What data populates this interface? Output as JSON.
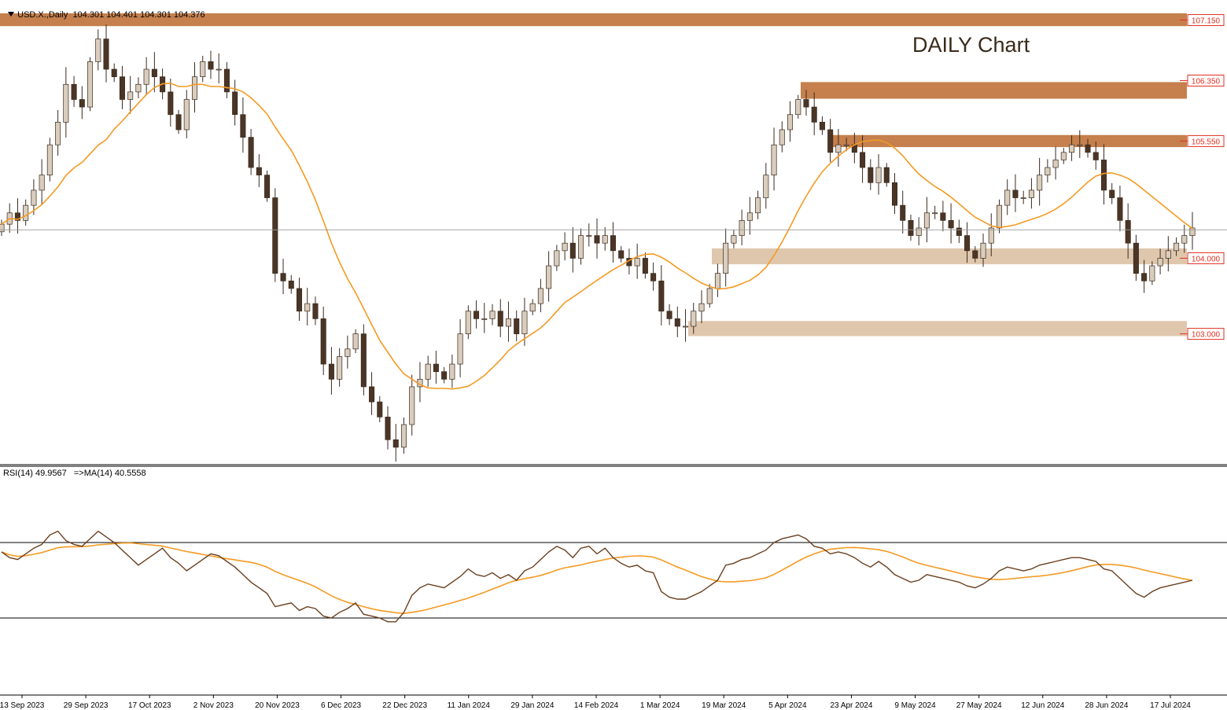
{
  "header": {
    "symbol": "USD.X.,Daily",
    "ohlc": "104.301 104.401 104.301 104.376"
  },
  "title": "DAILY Chart",
  "rsi_header": "RSI(14) 49.9567   =>MA(14) 40.5558",
  "colors": {
    "zone_dark": "#c5804d",
    "zone_light": "#dfc7ad",
    "ma": "#f59a23",
    "rsi": "#6b3f1e",
    "bull_body": "#d9cdbd",
    "bear_body": "#4a3526",
    "price_label": "#e03020"
  },
  "chart_data": [
    {
      "type": "candlestick",
      "instrument": "USD.X.",
      "timeframe": "Daily",
      "title": "DAILY Chart",
      "ylim": [
        101.28,
        107.27
      ],
      "x_ticks": [
        "13 Sep 2023",
        "29 Sep 2023",
        "17 Oct 2023",
        "2 Nov 2023",
        "20 Nov 2023",
        "6 Dec 2023",
        "22 Dec 2023",
        "11 Jan 2024",
        "29 Jan 2024",
        "14 Feb 2024",
        "1 Mar 2024",
        "19 Mar 2024",
        "5 Apr 2024",
        "23 Apr 2024",
        "9 May 2024",
        "27 May 2024",
        "12 Jun 2024",
        "28 Jun 2024",
        "17 Jul 2024"
      ],
      "zones": [
        {
          "label": "107.150",
          "low": 107.07,
          "high": 107.24,
          "style": "dark"
        },
        {
          "label": "106.350",
          "low": 106.11,
          "high": 106.33,
          "style": "dark"
        },
        {
          "label": "105.550",
          "low": 105.47,
          "high": 105.63,
          "style": "dark"
        },
        {
          "label": "104.000",
          "low": 103.92,
          "high": 104.13,
          "style": "light"
        },
        {
          "label": "103.000",
          "low": 102.97,
          "high": 103.17,
          "style": "light"
        }
      ],
      "current_price": 104.376,
      "close_series": [
        104.45,
        104.6,
        104.5,
        104.7,
        104.9,
        105.1,
        105.5,
        105.8,
        106.3,
        106.1,
        106.0,
        106.6,
        106.9,
        106.5,
        106.4,
        106.1,
        106.2,
        106.3,
        106.5,
        106.4,
        106.2,
        105.9,
        105.7,
        106.1,
        106.4,
        106.6,
        106.5,
        106.5,
        106.2,
        105.9,
        105.6,
        105.2,
        105.1,
        104.8,
        103.8,
        103.7,
        103.6,
        103.3,
        103.4,
        103.2,
        102.6,
        102.4,
        102.7,
        102.8,
        103.0,
        102.3,
        102.1,
        101.9,
        101.6,
        101.5,
        101.8,
        102.3,
        102.4,
        102.6,
        102.5,
        102.4,
        102.6,
        103.0,
        103.3,
        103.2,
        103.2,
        103.3,
        103.1,
        103.2,
        103.0,
        103.3,
        103.4,
        103.6,
        103.9,
        104.1,
        104.2,
        104.0,
        104.3,
        104.3,
        104.2,
        104.3,
        104.1,
        104.0,
        103.9,
        104.0,
        103.8,
        103.7,
        103.3,
        103.2,
        103.1,
        103.1,
        103.3,
        103.4,
        103.6,
        103.8,
        104.2,
        104.3,
        104.5,
        104.6,
        104.8,
        105.1,
        105.5,
        105.7,
        105.9,
        106.1,
        106.0,
        105.8,
        105.7,
        105.4,
        105.5,
        105.5,
        105.4,
        105.2,
        105.0,
        105.2,
        105.0,
        104.7,
        104.5,
        104.3,
        104.4,
        104.6,
        104.6,
        104.5,
        104.4,
        104.3,
        104.1,
        104.0,
        104.2,
        104.4,
        104.7,
        104.9,
        104.8,
        104.8,
        104.9,
        105.1,
        105.2,
        105.3,
        105.4,
        105.5,
        105.5,
        105.4,
        105.3,
        104.9,
        104.8,
        104.5,
        104.2,
        103.8,
        103.7,
        103.9,
        104.0,
        104.1,
        104.2,
        104.3,
        104.4
      ]
    },
    {
      "type": "line",
      "name": "RSI",
      "ylim": [
        -10,
        110
      ],
      "levels": [
        70,
        30
      ],
      "series": [
        {
          "name": "RSI(14)",
          "last": 49.9567,
          "values": [
            65,
            62,
            61,
            64,
            67,
            69,
            74,
            76,
            71,
            69,
            68,
            72,
            76,
            73,
            70,
            66,
            62,
            58,
            61,
            64,
            67,
            62,
            59,
            55,
            58,
            61,
            64,
            63,
            60,
            57,
            53,
            49,
            46,
            43,
            36,
            37,
            38,
            34,
            36,
            35,
            31,
            30,
            33,
            35,
            38,
            32,
            31,
            30,
            28,
            28,
            33,
            42,
            46,
            48,
            47,
            46,
            49,
            52,
            56,
            53,
            52,
            54,
            51,
            53,
            50,
            55,
            57,
            61,
            65,
            68,
            66,
            62,
            67,
            68,
            64,
            67,
            62,
            59,
            57,
            58,
            55,
            54,
            44,
            41,
            40,
            40,
            42,
            44,
            47,
            50,
            58,
            59,
            61,
            62,
            64,
            66,
            70,
            72,
            73,
            74,
            72,
            68,
            67,
            64,
            65,
            64,
            62,
            59,
            57,
            60,
            57,
            53,
            51,
            49,
            50,
            53,
            52,
            51,
            50,
            49,
            47,
            46,
            48,
            51,
            55,
            57,
            56,
            55,
            56,
            58,
            59,
            60,
            61,
            62,
            62,
            61,
            60,
            56,
            55,
            51,
            47,
            43,
            41,
            44,
            46,
            47,
            48,
            49,
            50
          ]
        },
        {
          "name": "MA(14)",
          "last": 40.5558
        }
      ]
    }
  ]
}
